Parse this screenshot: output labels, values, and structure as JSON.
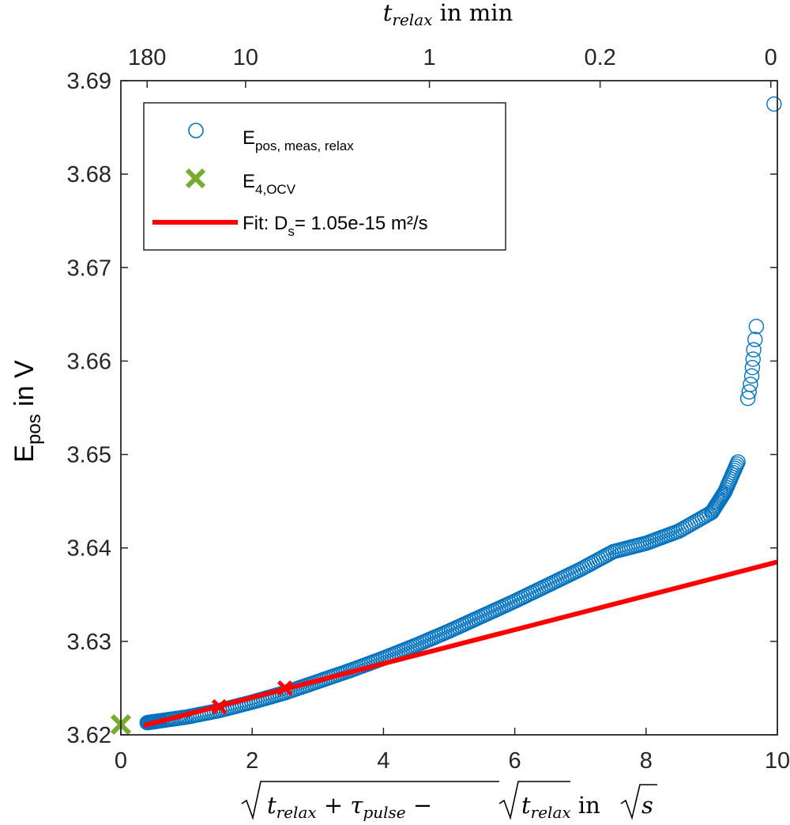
{
  "chart_data": {
    "type": "scatter",
    "xlim": [
      0,
      10
    ],
    "ylim": [
      3.62,
      3.69
    ],
    "x_ticks": [
      0,
      2,
      4,
      6,
      8,
      10
    ],
    "x_tick_labels": [
      "0",
      "2",
      "4",
      "6",
      "8",
      "10"
    ],
    "y_ticks": [
      3.62,
      3.63,
      3.64,
      3.65,
      3.66,
      3.67,
      3.68,
      3.69
    ],
    "y_tick_labels": [
      "3.62",
      "3.63",
      "3.64",
      "3.65",
      "3.66",
      "3.67",
      "3.68",
      "3.69"
    ],
    "top_axis": {
      "label_var": "t",
      "label_sub": "relax",
      "label_rest": " in min",
      "ticks": [
        {
          "x": 0.4,
          "label": "180"
        },
        {
          "x": 1.9,
          "label": "10"
        },
        {
          "x": 4.7,
          "label": "1"
        },
        {
          "x": 7.3,
          "label": "0.2"
        },
        {
          "x": 9.9,
          "label": "0"
        }
      ]
    },
    "xlabel": {
      "part1": "t",
      "sub1": "relax",
      "plus": " + ",
      "tau": "τ",
      "sub2": "pulse",
      "minus": " − ",
      "part2": "t",
      "sub3": "relax",
      "in": " in ",
      "s": "s"
    },
    "ylabel": {
      "main": "E",
      "sub": "pos",
      "rest": " in V"
    },
    "grid": false,
    "legend": {
      "placement": "top-left",
      "entries": [
        {
          "main": "E",
          "sub": "pos, meas, relax"
        },
        {
          "main": "E",
          "sub": "4,OCV"
        },
        {
          "main": "Fit: D",
          "sub": "s",
          "rest": "= 1.05e-15 m²/s"
        }
      ]
    },
    "colors": {
      "measured": "#0072BD",
      "ocv": "#77AC30",
      "fit": "#FF0000",
      "axis": "#262626"
    },
    "series": [
      {
        "name": "E_pos, meas, relax",
        "style": "open-circle",
        "curve": {
          "x": [
            0.4,
            0.6,
            1.0,
            1.5,
            2.0,
            2.5,
            3.0,
            3.5,
            4.0,
            4.5,
            5.0,
            5.5,
            6.0,
            6.5,
            7.0,
            7.5,
            8.0,
            8.5,
            9.0,
            9.2,
            9.4
          ],
          "y": [
            3.6213,
            3.6215,
            3.6219,
            3.6226,
            3.6235,
            3.6245,
            3.6257,
            3.6269,
            3.6282,
            3.6296,
            3.6311,
            3.6327,
            3.6343,
            3.636,
            3.6377,
            3.6396,
            3.6405,
            3.6418,
            3.6438,
            3.646,
            3.6492
          ]
        },
        "outliers": {
          "x": [
            9.55,
            9.57,
            9.59,
            9.61,
            9.62,
            9.63,
            9.64,
            9.66,
            9.68,
            9.95
          ],
          "y": [
            3.656,
            3.6567,
            3.6575,
            3.6584,
            3.6593,
            3.6602,
            3.6612,
            3.6623,
            3.6637,
            3.6875
          ]
        }
      },
      {
        "name": "E_4,OCV",
        "style": "x-marker",
        "x": [
          0.0
        ],
        "y": [
          3.6211
        ]
      },
      {
        "name": "Fit: D_s= 1.05e-15 m²/s",
        "style": "line",
        "x": [
          0.35,
          10.0
        ],
        "y": [
          3.621,
          3.6385
        ],
        "fit_markers": {
          "x": [
            1.5,
            2.5
          ],
          "y": [
            3.623,
            3.625
          ]
        }
      }
    ]
  }
}
